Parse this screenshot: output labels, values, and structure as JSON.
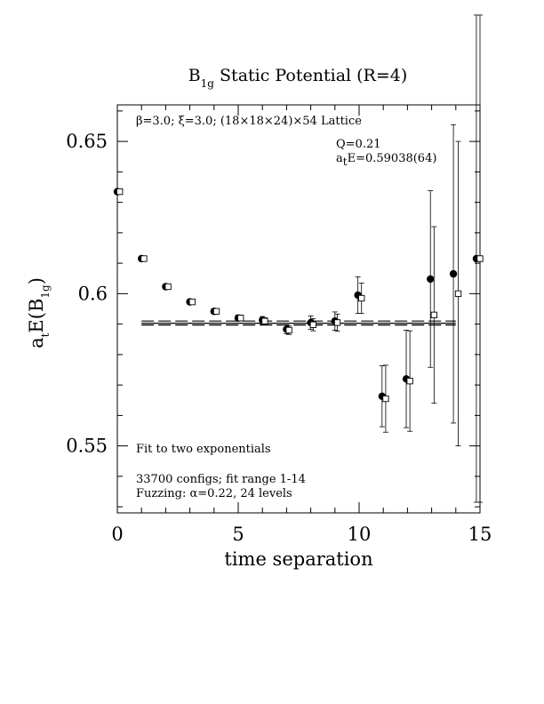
{
  "chart_data": {
    "type": "scatter",
    "title_main": "B",
    "title_sub": "1g",
    "title_rest": " Static Potential (R=4)",
    "xlabel": "time separation",
    "ylabel_main": "a",
    "ylabel_t": "t",
    "ylabel_mid": "E(B",
    "ylabel_sub": "1g",
    "ylabel_end": ")",
    "xlim": [
      0,
      15
    ],
    "ylim": [
      0.528,
      0.662
    ],
    "x_ticks": [
      0,
      5,
      10,
      15
    ],
    "x_tick_labels": [
      "0",
      "5",
      "10",
      "15"
    ],
    "y_ticks": [
      0.55,
      0.6,
      0.65
    ],
    "y_tick_labels": [
      "0.55",
      "0.6",
      "0.65"
    ],
    "grid": false,
    "annotations": {
      "lattice": "β=3.0; ξ=3.0; (18×18×24)×54 Lattice",
      "q": "Q=0.21",
      "fit_value_prefix": "a",
      "fit_value_sub": "t",
      "fit_value_rest": "E=0.59038(64)",
      "fit_type": "Fit to two exponentials",
      "configs": "33700 configs; fit range 1-14",
      "fuzzing": "Fuzzing: α=0.22, 24 levels"
    },
    "series": [
      {
        "marker": "filled-circle",
        "points": [
          {
            "x": 0,
            "y": 0.6335,
            "err": 0.0006
          },
          {
            "x": 1,
            "y": 0.6115,
            "err": 0.0006
          },
          {
            "x": 2,
            "y": 0.6023,
            "err": 0.0006
          },
          {
            "x": 3,
            "y": 0.5973,
            "err": 0.0007
          },
          {
            "x": 4,
            "y": 0.5942,
            "err": 0.0008
          },
          {
            "x": 5,
            "y": 0.592,
            "err": 0.001
          },
          {
            "x": 6,
            "y": 0.5913,
            "err": 0.0012
          },
          {
            "x": 7,
            "y": 0.5883,
            "err": 0.0015
          },
          {
            "x": 8,
            "y": 0.5905,
            "err": 0.0022
          },
          {
            "x": 9,
            "y": 0.591,
            "err": 0.003
          },
          {
            "x": 9.95,
            "y": 0.5995,
            "err": 0.006
          },
          {
            "x": 10.95,
            "y": 0.5663,
            "err": 0.01
          },
          {
            "x": 11.95,
            "y": 0.572,
            "err": 0.016
          },
          {
            "x": 12.95,
            "y": 0.6048,
            "err": 0.029
          },
          {
            "x": 13.9,
            "y": 0.6065,
            "err": 0.049
          },
          {
            "x": 14.85,
            "y": 0.6115,
            "err": 0.08
          }
        ]
      },
      {
        "marker": "open-square",
        "points": [
          {
            "x": 0.1,
            "y": 0.6335,
            "err": 0.0005
          },
          {
            "x": 1.1,
            "y": 0.6115,
            "err": 0.0005
          },
          {
            "x": 2.1,
            "y": 0.6023,
            "err": 0.0005
          },
          {
            "x": 3.1,
            "y": 0.5973,
            "err": 0.0006
          },
          {
            "x": 4.1,
            "y": 0.5942,
            "err": 0.0007
          },
          {
            "x": 5.1,
            "y": 0.592,
            "err": 0.0009
          },
          {
            "x": 6.1,
            "y": 0.591,
            "err": 0.0011
          },
          {
            "x": 7.1,
            "y": 0.588,
            "err": 0.0014
          },
          {
            "x": 8.1,
            "y": 0.5898,
            "err": 0.002
          },
          {
            "x": 9.1,
            "y": 0.5905,
            "err": 0.0028
          },
          {
            "x": 10.1,
            "y": 0.5985,
            "err": 0.005
          },
          {
            "x": 11.1,
            "y": 0.5655,
            "err": 0.011
          },
          {
            "x": 12.1,
            "y": 0.5713,
            "err": 0.0165
          },
          {
            "x": 13.1,
            "y": 0.593,
            "err": 0.029
          },
          {
            "x": 14.1,
            "y": 0.6,
            "err": 0.05
          },
          {
            "x": 15.0,
            "y": 0.6115,
            "err": 0.08
          }
        ]
      }
    ],
    "fit_lines": [
      {
        "style": "solid",
        "x": [
          1,
          14
        ],
        "y": 0.5903
      },
      {
        "style": "dashed",
        "x": [
          1,
          14
        ],
        "y": 0.591
      },
      {
        "style": "dashed",
        "x": [
          1,
          14
        ],
        "y": 0.5897
      }
    ]
  }
}
